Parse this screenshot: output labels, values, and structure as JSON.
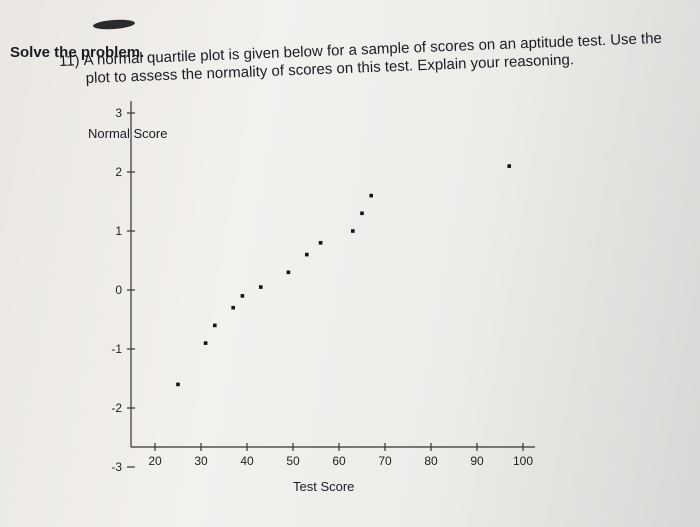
{
  "header": {
    "heading": "Solve the problem.",
    "question_number": "11)",
    "question_line1": "A normal quartile plot is given below for a sample of scores on an aptitude test. Use the",
    "question_line2": "plot to assess the normality of scores on this test. Explain your reasoning."
  },
  "chart_data": {
    "type": "scatter",
    "ylabel": "Normal Score",
    "xlabel": "Test Score",
    "xlim": [
      20,
      100
    ],
    "ylim": [
      -3,
      3
    ],
    "xticks": [
      20,
      30,
      40,
      50,
      60,
      70,
      80,
      90,
      100
    ],
    "yticks": [
      3,
      2,
      1,
      0,
      -1,
      -2,
      -3
    ],
    "grid": false,
    "points": [
      {
        "x": 25,
        "y": -1.6
      },
      {
        "x": 31,
        "y": -0.9
      },
      {
        "x": 33,
        "y": -0.6
      },
      {
        "x": 37,
        "y": -0.3
      },
      {
        "x": 39,
        "y": -0.1
      },
      {
        "x": 43,
        "y": 0.05
      },
      {
        "x": 49,
        "y": 0.3
      },
      {
        "x": 53,
        "y": 0.6
      },
      {
        "x": 56,
        "y": 0.8
      },
      {
        "x": 63,
        "y": 1.0
      },
      {
        "x": 65,
        "y": 1.3
      },
      {
        "x": 67,
        "y": 1.6
      },
      {
        "x": 97,
        "y": 2.1
      }
    ]
  }
}
